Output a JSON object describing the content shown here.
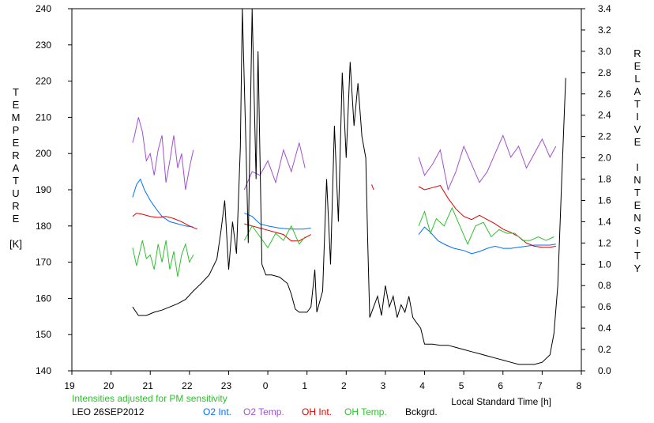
{
  "chart_data": {
    "type": "line",
    "title": "",
    "xlabel": "Local Standard Time [h]",
    "ylabel_left": [
      "T",
      "E",
      "M",
      "P",
      "E",
      "R",
      "A",
      "T",
      "U",
      "R",
      "E",
      "",
      "[K]"
    ],
    "ylabel_right": [
      "R",
      "E",
      "L",
      "A",
      "T",
      "I",
      "V",
      "E",
      "",
      "I",
      "N",
      "T",
      "E",
      "N",
      "S",
      "I",
      "T",
      "Y"
    ],
    "x_domain": [
      19,
      32
    ],
    "x_ticks": [
      19,
      20,
      21,
      22,
      23,
      24,
      25,
      26,
      27,
      28,
      29,
      30,
      31,
      32
    ],
    "x_tick_labels": [
      "19",
      "20",
      "21",
      "22",
      "23",
      "0",
      "1",
      "2",
      "3",
      "4",
      "5",
      "6",
      "7",
      "8"
    ],
    "ylim_left": [
      140,
      240
    ],
    "y_ticks_left": [
      "140",
      "150",
      "160",
      "170",
      "180",
      "190",
      "200",
      "210",
      "220",
      "230",
      "240"
    ],
    "ylim_right": [
      0.0,
      3.4
    ],
    "y_ticks_right": [
      "0.0",
      "0.2",
      "0.4",
      "0.6",
      "0.8",
      "1.0",
      "1.2",
      "1.4",
      "1.6",
      "1.8",
      "2.0",
      "2.2",
      "2.4",
      "2.6",
      "2.8",
      "3.0",
      "3.2",
      "3.4"
    ],
    "grid": false,
    "legend_position": "bottom",
    "series": [
      {
        "name": "O2 Int.",
        "color": "#0070ff",
        "axis": "right",
        "segments": [
          [
            [
              20.55,
              1.63
            ],
            [
              20.65,
              1.75
            ],
            [
              20.75,
              1.8
            ],
            [
              20.85,
              1.7
            ],
            [
              21.0,
              1.6
            ],
            [
              21.15,
              1.52
            ],
            [
              21.3,
              1.45
            ],
            [
              21.5,
              1.4
            ],
            [
              21.7,
              1.38
            ],
            [
              21.9,
              1.36
            ],
            [
              22.1,
              1.35
            ]
          ],
          [
            [
              23.4,
              1.48
            ],
            [
              23.6,
              1.45
            ],
            [
              23.8,
              1.38
            ],
            [
              24.0,
              1.36
            ],
            [
              24.3,
              1.34
            ],
            [
              24.6,
              1.33
            ],
            [
              24.9,
              1.33
            ],
            [
              25.1,
              1.34
            ]
          ],
          [
            [
              27.85,
              1.28
            ],
            [
              28.0,
              1.35
            ],
            [
              28.15,
              1.3
            ],
            [
              28.35,
              1.22
            ],
            [
              28.55,
              1.18
            ],
            [
              28.75,
              1.15
            ],
            [
              29.0,
              1.13
            ],
            [
              29.2,
              1.1
            ],
            [
              29.4,
              1.12
            ],
            [
              29.6,
              1.15
            ],
            [
              29.8,
              1.17
            ],
            [
              30.0,
              1.15
            ],
            [
              30.2,
              1.15
            ],
            [
              30.4,
              1.16
            ],
            [
              30.6,
              1.17
            ],
            [
              30.8,
              1.18
            ],
            [
              31.0,
              1.18
            ],
            [
              31.2,
              1.18
            ],
            [
              31.35,
              1.19
            ]
          ]
        ]
      },
      {
        "name": "O2 Temp.",
        "color": "#a050d0",
        "axis": "left",
        "segments": [
          [
            [
              20.55,
              203
            ],
            [
              20.6,
              205
            ],
            [
              20.7,
              210
            ],
            [
              20.8,
              206
            ],
            [
              20.9,
              198
            ],
            [
              21.0,
              200
            ],
            [
              21.1,
              194
            ],
            [
              21.2,
              201
            ],
            [
              21.3,
              205
            ],
            [
              21.4,
              192
            ],
            [
              21.5,
              198
            ],
            [
              21.6,
              205
            ],
            [
              21.7,
              196
            ],
            [
              21.8,
              200
            ],
            [
              21.9,
              190
            ],
            [
              22.0,
              196
            ],
            [
              22.1,
              201
            ]
          ],
          [
            [
              23.4,
              190
            ],
            [
              23.6,
              195
            ],
            [
              23.8,
              194
            ],
            [
              24.0,
              198
            ],
            [
              24.2,
              192
            ],
            [
              24.4,
              201
            ],
            [
              24.6,
              195
            ],
            [
              24.8,
              203
            ],
            [
              24.95,
              196
            ]
          ],
          [
            [
              27.85,
              199
            ],
            [
              28.0,
              194
            ],
            [
              28.2,
              197
            ],
            [
              28.4,
              201
            ],
            [
              28.6,
              190
            ],
            [
              28.8,
              195
            ],
            [
              29.0,
              202
            ],
            [
              29.2,
              197
            ],
            [
              29.4,
              192
            ],
            [
              29.6,
              195
            ],
            [
              29.8,
              200
            ],
            [
              30.0,
              205
            ],
            [
              30.2,
              199
            ],
            [
              30.4,
              202
            ],
            [
              30.6,
              196
            ],
            [
              30.8,
              200
            ],
            [
              31.0,
              204
            ],
            [
              31.2,
              199
            ],
            [
              31.35,
              202
            ]
          ]
        ]
      },
      {
        "name": "OH Int.",
        "color": "#e00000",
        "axis": "right",
        "segments": [
          [
            [
              20.55,
              1.45
            ],
            [
              20.65,
              1.48
            ],
            [
              20.8,
              1.47
            ],
            [
              21.0,
              1.45
            ],
            [
              21.2,
              1.44
            ],
            [
              21.4,
              1.45
            ],
            [
              21.6,
              1.43
            ],
            [
              21.8,
              1.4
            ],
            [
              22.0,
              1.36
            ],
            [
              22.2,
              1.33
            ]
          ],
          [
            [
              23.4,
              1.38
            ],
            [
              23.6,
              1.36
            ],
            [
              23.8,
              1.34
            ],
            [
              24.0,
              1.32
            ],
            [
              24.2,
              1.3
            ],
            [
              24.4,
              1.28
            ],
            [
              24.6,
              1.22
            ],
            [
              24.8,
              1.22
            ],
            [
              25.0,
              1.26
            ],
            [
              25.1,
              1.28
            ]
          ],
          [
            [
              26.65,
              1.75
            ],
            [
              26.7,
              1.7
            ]
          ],
          [
            [
              27.85,
              1.73
            ],
            [
              28.0,
              1.7
            ],
            [
              28.2,
              1.72
            ],
            [
              28.4,
              1.74
            ],
            [
              28.6,
              1.62
            ],
            [
              28.8,
              1.52
            ],
            [
              29.0,
              1.45
            ],
            [
              29.2,
              1.42
            ],
            [
              29.4,
              1.46
            ],
            [
              29.6,
              1.42
            ],
            [
              29.8,
              1.38
            ],
            [
              30.0,
              1.33
            ],
            [
              30.2,
              1.3
            ],
            [
              30.4,
              1.26
            ],
            [
              30.6,
              1.2
            ],
            [
              30.8,
              1.17
            ],
            [
              31.0,
              1.16
            ],
            [
              31.2,
              1.16
            ],
            [
              31.35,
              1.17
            ]
          ]
        ]
      },
      {
        "name": "OH Temp.",
        "color": "#30c030",
        "axis": "left",
        "segments": [
          [
            [
              20.55,
              174
            ],
            [
              20.65,
              169
            ],
            [
              20.8,
              176
            ],
            [
              20.9,
              171
            ],
            [
              21.0,
              172
            ],
            [
              21.1,
              168
            ],
            [
              21.2,
              175
            ],
            [
              21.3,
              170
            ],
            [
              21.4,
              176
            ],
            [
              21.5,
              168
            ],
            [
              21.6,
              173
            ],
            [
              21.7,
              166
            ],
            [
              21.8,
              172
            ],
            [
              21.9,
              175
            ],
            [
              22.0,
              170
            ],
            [
              22.1,
              172
            ]
          ],
          [
            [
              23.4,
              176
            ],
            [
              23.6,
              180
            ],
            [
              23.8,
              177
            ],
            [
              24.0,
              174
            ],
            [
              24.2,
              178
            ],
            [
              24.4,
              176
            ],
            [
              24.6,
              180
            ],
            [
              24.8,
              175
            ],
            [
              24.95,
              177
            ]
          ],
          [
            [
              27.85,
              180
            ],
            [
              28.0,
              184
            ],
            [
              28.15,
              178
            ],
            [
              28.3,
              182
            ],
            [
              28.5,
              180
            ],
            [
              28.7,
              185
            ],
            [
              28.9,
              180
            ],
            [
              29.1,
              175
            ],
            [
              29.3,
              180
            ],
            [
              29.5,
              181
            ],
            [
              29.7,
              177
            ],
            [
              29.9,
              179
            ],
            [
              30.1,
              178
            ],
            [
              30.3,
              178
            ],
            [
              30.5,
              176
            ],
            [
              30.7,
              176
            ],
            [
              30.9,
              177
            ],
            [
              31.1,
              176
            ],
            [
              31.3,
              177
            ]
          ]
        ]
      },
      {
        "name": "Bckgrd.",
        "color": "#000000",
        "axis": "right",
        "segments": [
          [
            [
              20.55,
              0.6
            ],
            [
              20.7,
              0.52
            ],
            [
              20.9,
              0.52
            ],
            [
              21.1,
              0.55
            ],
            [
              21.3,
              0.57
            ],
            [
              21.5,
              0.6
            ],
            [
              21.7,
              0.63
            ],
            [
              21.9,
              0.67
            ],
            [
              22.1,
              0.75
            ],
            [
              22.3,
              0.82
            ],
            [
              22.5,
              0.9
            ],
            [
              22.7,
              1.05
            ],
            [
              22.8,
              1.3
            ],
            [
              22.9,
              1.6
            ],
            [
              23.0,
              0.95
            ],
            [
              23.1,
              1.4
            ],
            [
              23.2,
              1.1
            ],
            [
              23.3,
              2.1
            ],
            [
              23.35,
              3.4
            ],
            [
              23.45,
              2.0
            ],
            [
              23.5,
              1.2
            ],
            [
              23.6,
              3.4
            ],
            [
              23.7,
              1.8
            ],
            [
              23.75,
              3.0
            ],
            [
              23.85,
              1.0
            ],
            [
              23.95,
              0.9
            ],
            [
              24.1,
              0.9
            ],
            [
              24.3,
              0.88
            ],
            [
              24.5,
              0.82
            ],
            [
              24.6,
              0.72
            ],
            [
              24.7,
              0.58
            ],
            [
              24.8,
              0.55
            ],
            [
              25.0,
              0.55
            ],
            [
              25.1,
              0.6
            ],
            [
              25.2,
              0.95
            ],
            [
              25.25,
              0.55
            ],
            [
              25.4,
              0.75
            ],
            [
              25.5,
              1.8
            ],
            [
              25.6,
              1.0
            ],
            [
              25.7,
              2.3
            ],
            [
              25.8,
              1.4
            ],
            [
              25.9,
              2.8
            ],
            [
              26.0,
              2.0
            ],
            [
              26.1,
              2.9
            ],
            [
              26.2,
              2.3
            ],
            [
              26.3,
              2.7
            ],
            [
              26.4,
              2.2
            ],
            [
              26.5,
              2.0
            ],
            [
              26.55,
              1.2
            ],
            [
              26.6,
              0.5
            ],
            [
              26.7,
              0.6
            ],
            [
              26.8,
              0.7
            ],
            [
              26.9,
              0.52
            ],
            [
              27.0,
              0.8
            ],
            [
              27.1,
              0.6
            ],
            [
              27.2,
              0.7
            ],
            [
              27.3,
              0.5
            ],
            [
              27.4,
              0.62
            ],
            [
              27.5,
              0.55
            ],
            [
              27.6,
              0.7
            ],
            [
              27.7,
              0.5
            ],
            [
              27.8,
              0.45
            ],
            [
              27.9,
              0.4
            ],
            [
              28.0,
              0.25
            ],
            [
              28.2,
              0.25
            ],
            [
              28.4,
              0.24
            ],
            [
              28.6,
              0.24
            ],
            [
              28.8,
              0.22
            ],
            [
              29.0,
              0.2
            ],
            [
              29.2,
              0.18
            ],
            [
              29.4,
              0.16
            ],
            [
              29.6,
              0.14
            ],
            [
              29.8,
              0.12
            ],
            [
              30.0,
              0.1
            ],
            [
              30.2,
              0.08
            ],
            [
              30.4,
              0.06
            ],
            [
              30.6,
              0.06
            ],
            [
              30.8,
              0.06
            ],
            [
              31.0,
              0.08
            ],
            [
              31.2,
              0.15
            ],
            [
              31.3,
              0.35
            ],
            [
              31.4,
              0.8
            ],
            [
              31.5,
              1.8
            ],
            [
              31.6,
              2.75
            ]
          ]
        ]
      }
    ]
  },
  "legend": {
    "note": "Intensities adjusted for PM sensitivity",
    "station_date": "LEO 26SEP2012",
    "items": [
      {
        "label": "O2 Int.",
        "color": "#0070ff"
      },
      {
        "label": "O2 Temp.",
        "color": "#a050d0"
      },
      {
        "label": "OH Int.",
        "color": "#e00000"
      },
      {
        "label": "OH Temp.",
        "color": "#30c030"
      },
      {
        "label": "Bckgrd.",
        "color": "#000000"
      }
    ]
  }
}
